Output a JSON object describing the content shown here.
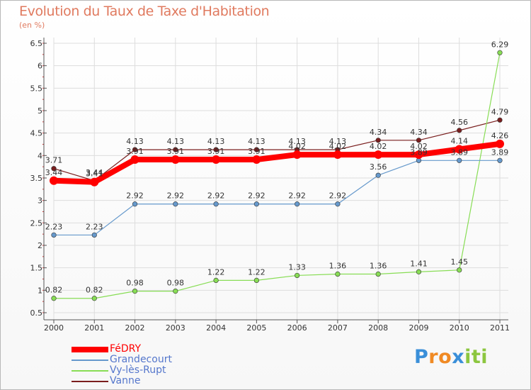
{
  "chart_data": {
    "type": "line",
    "title": "Evolution du Taux de Taxe d'Habitation",
    "subtitle": "(en %)",
    "xlabel": "",
    "ylabel": "",
    "categories": [
      "2000",
      "2001",
      "2002",
      "2003",
      "2004",
      "2005",
      "2006",
      "2007",
      "2008",
      "2009",
      "2010",
      "2011"
    ],
    "yticks": [
      "0.5",
      "1",
      "1.5",
      "2",
      "2.5",
      "3",
      "3.5",
      "4",
      "4.5",
      "5",
      "5.5",
      "6",
      "6.5"
    ],
    "ylim": [
      0.5,
      6.5
    ],
    "grid": true,
    "legend_position": "bottom-left",
    "series": [
      {
        "name": "Vanne",
        "color": "#7a1e1e",
        "values": [
          3.71,
          3.44,
          4.13,
          4.13,
          4.13,
          4.13,
          4.13,
          4.13,
          4.34,
          4.34,
          4.56,
          4.79
        ],
        "labels": [
          "3.71",
          "3.44",
          "4.13",
          "4.13",
          "4.13",
          "4.13",
          "4.13",
          "4.13",
          "4.34",
          "4.34",
          "4.56",
          "4.79"
        ]
      },
      {
        "name": "Vy-lès-Rupt",
        "color": "#88dd55",
        "values": [
          0.82,
          0.82,
          0.98,
          0.98,
          1.22,
          1.22,
          1.33,
          1.36,
          1.36,
          1.41,
          1.45,
          6.29
        ],
        "labels": [
          "0.82",
          "0.82",
          "0.98",
          "0.98",
          "1.22",
          "1.22",
          "1.33",
          "1.36",
          "1.36",
          "1.41",
          "1.45",
          "6.29"
        ]
      },
      {
        "name": "Grandecourt",
        "color": "#6699cc",
        "values": [
          2.23,
          2.23,
          2.92,
          2.92,
          2.92,
          2.92,
          2.92,
          2.92,
          3.56,
          3.89,
          3.89,
          3.89
        ],
        "labels": [
          "2.23",
          "2.23",
          "2.92",
          "2.92",
          "2.92",
          "2.92",
          "2.92",
          "2.92",
          "3.56",
          "3.89",
          "3.89",
          "3.89"
        ]
      },
      {
        "name": "FéDRY",
        "color": "#ff0000",
        "values": [
          3.44,
          3.41,
          3.91,
          3.91,
          3.91,
          3.91,
          4.02,
          4.02,
          4.02,
          4.02,
          4.14,
          4.26
        ],
        "labels": [
          "3.44",
          "3.41",
          "3.91",
          "3.91",
          "3.91",
          "3.91",
          "4.02",
          "4.02",
          "4.02",
          "4.02",
          "4.14",
          "4.26"
        ]
      }
    ],
    "legend_order": [
      "FéDRY",
      "Grandecourt",
      "Vy-lès-Rupt",
      "Vanne"
    ]
  },
  "logo": {
    "letters": [
      "P",
      "r",
      "o",
      "x",
      "i",
      "t",
      "i"
    ],
    "colors": [
      "#3a8fd9",
      "#f08a24",
      "#f08a24",
      "#3a8fd9",
      "#8cc63f",
      "#8cc63f",
      "#8cc63f"
    ]
  }
}
